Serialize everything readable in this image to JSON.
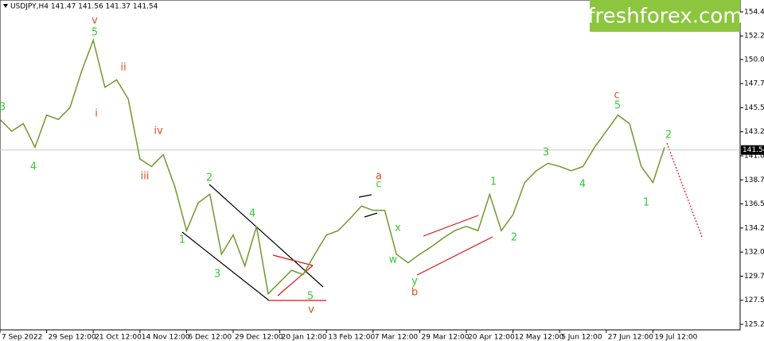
{
  "chart_data": {
    "type": "line",
    "title": "USDJPY,H4  141.47 141.56 141.37 141.54",
    "logo": "freshforex.com",
    "categories": [
      "7 Sep 2022",
      null,
      null,
      null,
      "29 Sep 12:00",
      null,
      null,
      null,
      "21 Oct 12:00",
      null,
      null,
      null,
      "14 Nov 12:00",
      null,
      null,
      null,
      "6 Dec 12:00",
      null,
      null,
      null,
      "29 Dec 12:00",
      null,
      null,
      null,
      "20 Jan 12:00",
      null,
      null,
      null,
      "13 Feb 12:00",
      null,
      null,
      null,
      "7 Mar 12:00",
      null,
      null,
      null,
      "29 Mar 12:00",
      null,
      null,
      null,
      "20 Apr 12:00",
      null,
      null,
      null,
      "12 May 12:00",
      null,
      null,
      null,
      "5 Jun 12:00",
      null,
      null,
      null,
      "27 Jun 12:00",
      null,
      null,
      null,
      "19 Jul 12:00",
      null,
      null,
      null,
      null,
      null,
      null,
      null
    ],
    "series": [
      {
        "name": "USDJPY",
        "color": "#6f9a2c",
        "values": [
          144.4,
          143.3,
          144.0,
          141.8,
          144.8,
          144.4,
          145.5,
          148.9,
          151.8,
          147.4,
          148.1,
          146.3,
          140.7,
          140.0,
          141.1,
          138.1,
          134.0,
          136.6,
          137.4,
          131.8,
          133.6,
          130.7,
          134.4,
          128.1,
          129.2,
          130.3,
          129.9,
          131.8,
          133.6,
          134.0,
          135.1,
          136.3,
          135.9,
          135.9,
          131.8,
          131.0,
          131.8,
          132.5,
          133.3,
          134.0,
          134.4,
          134.0,
          137.4,
          134.0,
          135.5,
          138.5,
          139.6,
          140.3,
          140.0,
          139.6,
          140.0,
          141.8,
          143.3,
          144.8,
          144.0,
          140.0,
          138.5,
          141.8,
          null,
          null,
          null,
          null,
          null,
          null
        ]
      }
    ],
    "ylim": [
      124.73,
      155.56
    ],
    "yticks": [
      154.45,
      {
        "value": 152.2,
        "label": "152.20"
      },
      {
        "value": 150,
        "label": "150.00"
      },
      147.75,
      {
        "value": 145.5,
        "label": "145.50"
      },
      143.25,
      {
        "value": 141,
        "label": "141.00"
      },
      138.75,
      {
        "value": 136.5,
        "label": "136.50"
      },
      134.25,
      {
        "value": 132,
        "label": "132.00"
      },
      129.75,
      {
        "value": 127.5,
        "label": "127.50"
      },
      125.25
    ],
    "current_price": 141.54,
    "annotations": [
      {
        "text": "3",
        "color": "#33cc33"
      },
      {
        "text": "4",
        "color": "#33cc33"
      },
      {
        "text": "5",
        "color": "#33cc33"
      },
      {
        "text": "v",
        "color": "#e0501e"
      },
      {
        "text": "ii",
        "color": "#e0501e"
      },
      {
        "text": "i",
        "color": "#e0501e"
      },
      {
        "text": "iv",
        "color": "#e0501e"
      },
      {
        "text": "iii",
        "color": "#e0501e"
      },
      {
        "text": "2",
        "color": "#33cc33"
      },
      {
        "text": "1",
        "color": "#33cc33"
      },
      {
        "text": "3",
        "color": "#33cc33"
      },
      {
        "text": "4",
        "color": "#33cc33"
      },
      {
        "text": "5",
        "color": "#33cc33"
      },
      {
        "text": "v",
        "color": "#e0501e"
      },
      {
        "text": "a",
        "color": "#e0501e"
      },
      {
        "text": "c",
        "color": "#33cc33"
      },
      {
        "text": "x",
        "color": "#33cc33"
      },
      {
        "text": "w",
        "color": "#33cc33"
      },
      {
        "text": "y",
        "color": "#33cc33"
      },
      {
        "text": "b",
        "color": "#e0501e"
      },
      {
        "text": "1",
        "color": "#33cc33"
      },
      {
        "text": "2",
        "color": "#33cc33"
      },
      {
        "text": "3",
        "color": "#33cc33"
      },
      {
        "text": "4",
        "color": "#33cc33"
      },
      {
        "text": "c",
        "color": "#e0501e"
      },
      {
        "text": "5",
        "color": "#33cc33"
      },
      {
        "text": "2",
        "color": "#33cc33"
      },
      {
        "text": "1",
        "color": "#33cc33"
      }
    ]
  }
}
